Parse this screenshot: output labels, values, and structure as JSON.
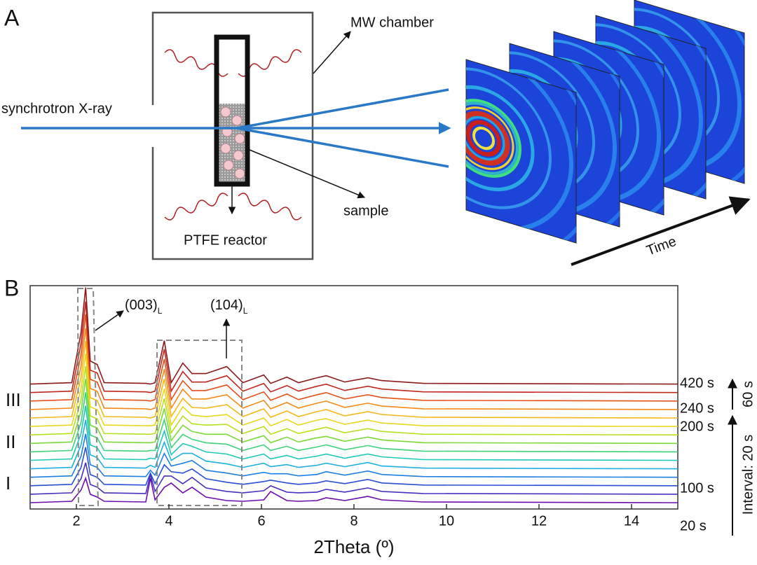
{
  "panel_a": {
    "label": "A",
    "chamber_label": "MW chamber",
    "beam_label": "synchrotron X-ray",
    "sample_label": "sample",
    "reactor_label": "PTFE reactor",
    "time_label": "Time"
  },
  "chart_data": {
    "type": "line",
    "panel_label": "B",
    "xlabel": "2Theta (º)",
    "xlim": [
      1,
      15
    ],
    "xticks": [
      2,
      4,
      6,
      8,
      10,
      12,
      14
    ],
    "x": [
      1,
      1.9,
      2.1,
      2.2,
      2.3,
      2.45,
      2.6,
      3.5,
      3.6,
      3.7,
      3.9,
      4.05,
      4.3,
      4.5,
      4.8,
      5.25,
      5.6,
      6.05,
      6.2,
      6.55,
      6.8,
      7.2,
      7.4,
      7.8,
      8.3,
      8.6,
      9.5,
      15
    ],
    "series": [
      {
        "name": "20 s",
        "color": "#6a0dad",
        "values": [
          0,
          2,
          18,
          35,
          12,
          8,
          2,
          1,
          35,
          4,
          22,
          28,
          14,
          22,
          8,
          3,
          2,
          4,
          16,
          3,
          2,
          3,
          7,
          3,
          9,
          4,
          1,
          0
        ]
      },
      {
        "color": "#4b2fbf",
        "values": [
          0,
          2,
          22,
          45,
          14,
          10,
          2,
          1,
          28,
          4,
          26,
          26,
          15,
          24,
          9,
          4,
          2,
          5,
          12,
          3,
          2,
          3,
          7,
          3,
          9,
          4,
          1,
          0
        ]
      },
      {
        "color": "#2a4fd6",
        "values": [
          0,
          2,
          26,
          55,
          16,
          12,
          2,
          1,
          18,
          3,
          30,
          20,
          18,
          24,
          10,
          5,
          2,
          6,
          8,
          4,
          2,
          4,
          7,
          3,
          9,
          4,
          1,
          0
        ]
      },
      {
        "color": "#1f7fe0",
        "values": [
          0,
          2,
          30,
          62,
          18,
          14,
          2,
          1,
          10,
          3,
          34,
          16,
          20,
          24,
          10,
          6,
          2,
          7,
          5,
          5,
          2,
          4,
          8,
          3,
          9,
          4,
          1,
          0
        ]
      },
      {
        "name": "100 s",
        "color": "#1fb0e0",
        "values": [
          0,
          2,
          34,
          70,
          20,
          16,
          2,
          1,
          5,
          2,
          38,
          12,
          22,
          22,
          11,
          7,
          2,
          8,
          3,
          6,
          2,
          5,
          8,
          3,
          9,
          4,
          1,
          0
        ]
      },
      {
        "color": "#20c9b5",
        "values": [
          0,
          2,
          38,
          78,
          22,
          18,
          2,
          1,
          3,
          2,
          42,
          8,
          24,
          20,
          12,
          9,
          2,
          9,
          2,
          7,
          2,
          6,
          9,
          3,
          9,
          5,
          1,
          0
        ]
      },
      {
        "color": "#3fd27a",
        "values": [
          0,
          2,
          42,
          85,
          24,
          20,
          2,
          1,
          2,
          2,
          46,
          6,
          25,
          18,
          13,
          11,
          2,
          10,
          2,
          8,
          2,
          7,
          10,
          3,
          9,
          5,
          1,
          0
        ]
      },
      {
        "color": "#7bd93a",
        "values": [
          0,
          2,
          46,
          92,
          26,
          22,
          2,
          1,
          1,
          2,
          50,
          4,
          26,
          17,
          13,
          13,
          2,
          11,
          1,
          9,
          2,
          8,
          10,
          3,
          9,
          5,
          1,
          0
        ]
      },
      {
        "color": "#b7e01f",
        "values": [
          0,
          2,
          50,
          98,
          27,
          23,
          2,
          1,
          1,
          2,
          52,
          3,
          27,
          16,
          14,
          15,
          2,
          12,
          1,
          9,
          2,
          8,
          11,
          3,
          9,
          5,
          1,
          0
        ]
      },
      {
        "name": "200 s",
        "color": "#e8d820",
        "values": [
          0,
          2,
          54,
          104,
          28,
          24,
          2,
          1,
          1,
          2,
          54,
          2,
          28,
          16,
          14,
          17,
          2,
          12,
          1,
          10,
          2,
          9,
          11,
          3,
          9,
          5,
          1,
          0
        ]
      },
      {
        "color": "#f5b81a",
        "values": [
          0,
          2,
          58,
          110,
          29,
          25,
          2,
          1,
          0,
          2,
          56,
          2,
          28,
          15,
          14,
          19,
          2,
          13,
          1,
          10,
          2,
          9,
          12,
          3,
          9,
          5,
          1,
          0
        ]
      },
      {
        "name": "240 s",
        "color": "#f28a1a",
        "values": [
          0,
          2,
          62,
          116,
          30,
          26,
          2,
          1,
          0,
          2,
          58,
          2,
          29,
          15,
          15,
          21,
          2,
          13,
          1,
          10,
          2,
          9,
          12,
          3,
          9,
          5,
          1,
          0
        ]
      },
      {
        "color": "#e4521b",
        "values": [
          0,
          2,
          66,
          124,
          31,
          27,
          2,
          1,
          0,
          2,
          60,
          2,
          29,
          15,
          15,
          23,
          2,
          13,
          1,
          10,
          2,
          9,
          12,
          3,
          9,
          5,
          1,
          0
        ]
      },
      {
        "color": "#c0281e",
        "values": [
          0,
          2,
          70,
          130,
          32,
          28,
          2,
          1,
          0,
          2,
          62,
          2,
          30,
          15,
          15,
          24,
          2,
          13,
          1,
          10,
          2,
          9,
          12,
          3,
          9,
          5,
          1,
          0
        ]
      },
      {
        "name": "420 s",
        "color": "#8b1a1a",
        "values": [
          0,
          2,
          74,
          138,
          33,
          28,
          2,
          1,
          0,
          2,
          62,
          2,
          30,
          15,
          15,
          25,
          2,
          13,
          1,
          10,
          2,
          9,
          12,
          3,
          9,
          5,
          1,
          0
        ]
      }
    ],
    "regions": [
      "I",
      "II",
      "III"
    ],
    "intervals": [
      "Interval: 20 s",
      "60 s"
    ],
    "annotations": [
      {
        "text": "(003)",
        "sub": "L"
      },
      {
        "text": "(104)",
        "sub": "L"
      }
    ]
  }
}
